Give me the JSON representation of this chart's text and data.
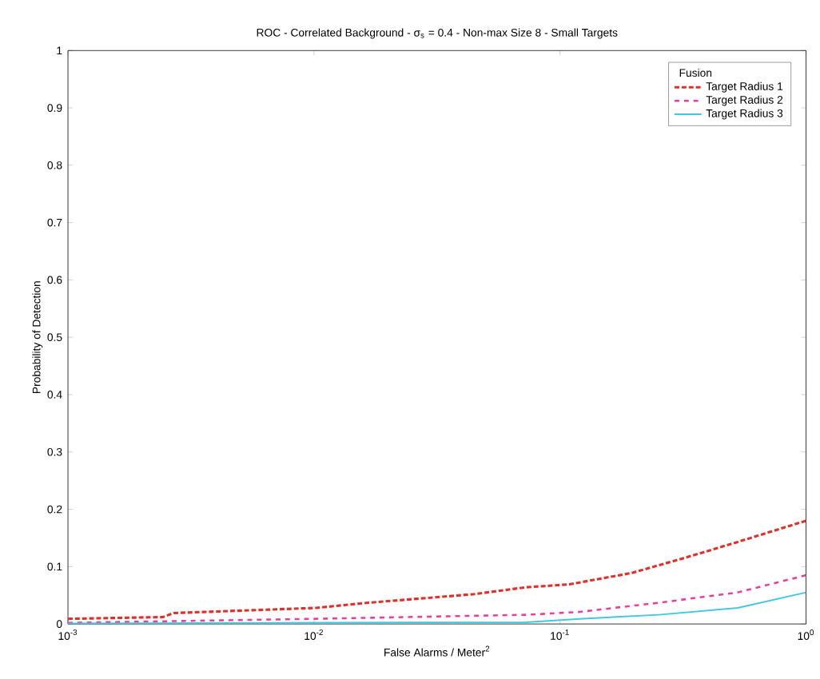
{
  "chart_data": {
    "type": "line",
    "title": "ROC - Correlated Background - σ$_{s}$ = 0.4 - Non-max Size 8 - Small Targets",
    "xlabel": "False Alarms / Meter$^{2}$",
    "ylabel": "Probability of Detection",
    "legend_title": "Fusion",
    "log": "x",
    "xlim": [
      0.001,
      1
    ],
    "ylim": [
      0,
      1
    ],
    "xticks": [
      {
        "value": 0.001,
        "label": "10$^{-3}$"
      },
      {
        "value": 0.01,
        "label": "10$^{-2}$"
      },
      {
        "value": 0.1,
        "label": "10$^{-1}$"
      },
      {
        "value": 1,
        "label": "10$^{0}$"
      }
    ],
    "yticks": [
      0,
      0.1,
      0.2,
      0.3,
      0.4,
      0.5,
      0.6,
      0.7,
      0.8,
      0.9,
      1
    ],
    "grid": false,
    "legend": "top right",
    "marker": "none",
    "series": [
      {
        "name": "Target Radius 1",
        "color": "#e0302a",
        "line_style": "dashed",
        "x": [
          0.001,
          0.00243,
          0.00269,
          0.0102,
          0.0166,
          0.0448,
          0.0729,
          0.109,
          0.196,
          0.32,
          0.528,
          1
        ],
        "values": [
          0.009,
          0.012,
          0.019,
          0.028,
          0.037,
          0.052,
          0.064,
          0.069,
          0.089,
          0.115,
          0.143,
          0.18
        ]
      },
      {
        "name": "Target Radius 2",
        "color": "#e8409a",
        "line_style": "dashed",
        "x": [
          0.001,
          0.0102,
          0.0729,
          0.12,
          0.252,
          0.528,
          1
        ],
        "values": [
          0.002,
          0.009,
          0.016,
          0.021,
          0.037,
          0.055,
          0.085
        ]
      },
      {
        "name": "Target Radius 3",
        "color": "#40c8e0",
        "line_style": "solid",
        "x": [
          0.001,
          0.0729,
          0.12,
          0.252,
          0.528,
          1
        ],
        "values": [
          0.001,
          0.003,
          0.009,
          0.016,
          0.028,
          0.055
        ]
      }
    ]
  }
}
